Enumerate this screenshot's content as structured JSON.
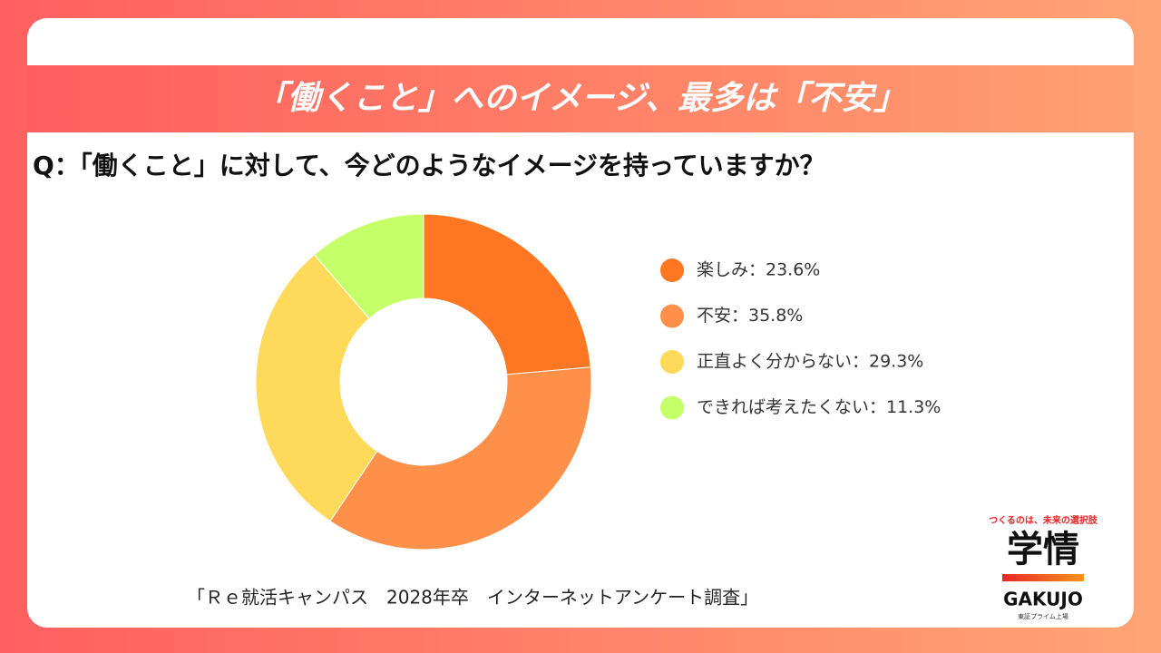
{
  "chart_data": {
    "type": "donut",
    "title": "「働くこと」へのイメージ、最多は「不安」",
    "subtitle": "Q：「働くこと」に対して、今どのようなイメージを持っていますか？",
    "categories": [
      "楽しみ：23.6%",
      "不安：35.8%",
      "正直よく分からない：29.3%",
      "できれば考えたくない：11.3%"
    ],
    "values": [
      23.6,
      35.8,
      29.3,
      11.3
    ],
    "colors": [
      "#ff7722",
      "#ff904a",
      "#ffd95a",
      "#c5ff6a"
    ],
    "legend": "right",
    "source": "「Ｒｅ就活キャンパス　2028年卒　インターネットアンケート調査」"
  },
  "logo": {
    "tagline": "つくるのは、未来の選択肢",
    "name": "学情",
    "roman": "GAKUJO",
    "listing": "東証プライム上場"
  }
}
